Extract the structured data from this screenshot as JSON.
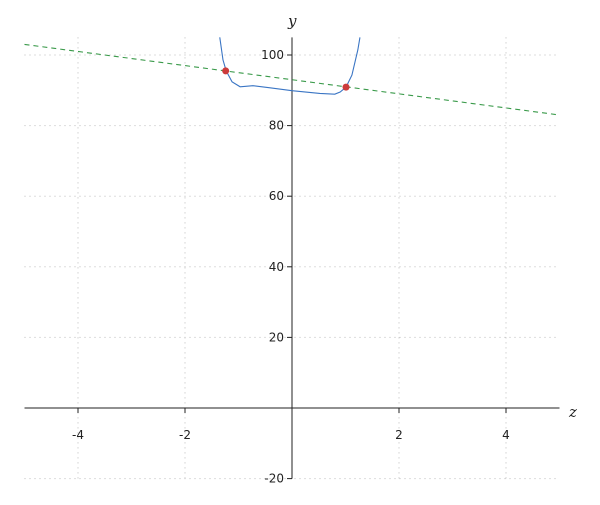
{
  "chart_data": {
    "type": "line",
    "xlabel": "z",
    "ylabel": "y",
    "xlim": [
      -5,
      5
    ],
    "ylim": [
      -20,
      105
    ],
    "grid": true,
    "xticks": [
      -4,
      -2,
      2,
      4
    ],
    "yticks": [
      -20,
      20,
      40,
      60,
      80,
      100
    ],
    "series": [
      {
        "style": "solid",
        "color": "#3a75c4",
        "x": [
          -1.35,
          -1.29,
          -1.23,
          -1.12,
          -0.97,
          -0.73,
          -0.41,
          0,
          0.52,
          0.8,
          0.9,
          1.01,
          1.12,
          1.23,
          1.27
        ],
        "y": [
          105,
          98.6,
          95.5,
          92.4,
          91.0,
          91.3,
          90.7,
          89.9,
          89.1,
          88.9,
          89.5,
          90.9,
          94.3,
          101.4,
          105
        ]
      },
      {
        "style": "dashed",
        "color": "#3a9a4a",
        "x": [
          -5,
          5
        ],
        "y": [
          103,
          83
        ]
      }
    ],
    "points": {
      "color": "#cc3b3b",
      "x": [
        -1.24,
        1.01
      ],
      "y": [
        95.5,
        90.9
      ]
    }
  }
}
